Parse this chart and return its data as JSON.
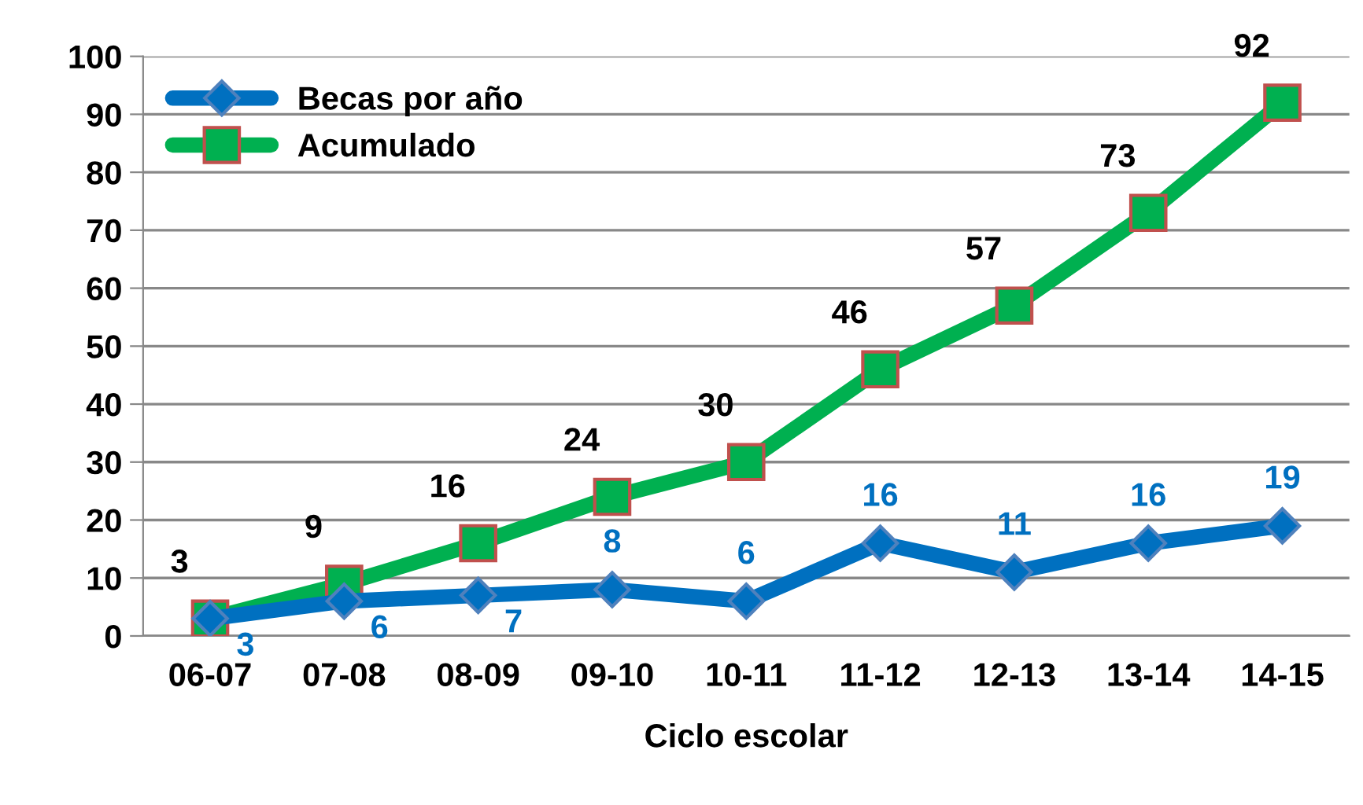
{
  "chart_data": {
    "type": "line",
    "xlabel": "Ciclo escolar",
    "categories": [
      "06-07",
      "07-08",
      "08-09",
      "09-10",
      "10-11",
      "11-12",
      "12-13",
      "13-14",
      "14-15"
    ],
    "series": [
      {
        "name": "Becas por año",
        "color": "#0070c0",
        "marker": "diamond",
        "values": [
          3,
          6,
          7,
          8,
          6,
          16,
          11,
          16,
          19
        ]
      },
      {
        "name": "Acumulado",
        "color": "#00b050",
        "marker": "square",
        "values": [
          3,
          9,
          16,
          24,
          30,
          46,
          57,
          73,
          92
        ]
      }
    ],
    "ylim": [
      0,
      100
    ],
    "yticks": [
      0,
      10,
      20,
      30,
      40,
      50,
      60,
      70,
      80,
      90,
      100
    ],
    "grid": "y",
    "legend": "top left",
    "data_labels": true
  }
}
